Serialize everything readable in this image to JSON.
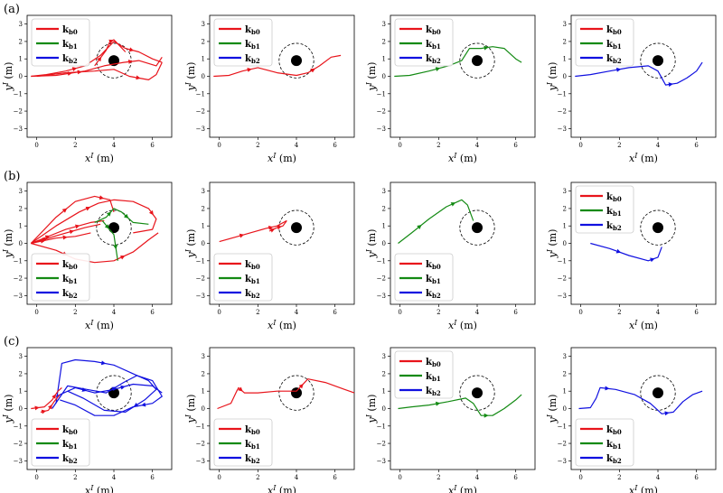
{
  "figure": {
    "row_labels": [
      "(a)",
      "(b)",
      "(c)"
    ]
  },
  "chart_data": [
    {
      "id": "a1",
      "row": 0,
      "col": 0,
      "type": "line",
      "xlabel": "x^I (m)",
      "ylabel": "y^I (m)",
      "xlim": [
        -0.5,
        7
      ],
      "ylim": [
        -3.5,
        3.5
      ],
      "xticks": [
        0,
        2,
        4,
        6
      ],
      "yticks": [
        -3,
        -2,
        -1,
        0,
        1,
        2,
        3
      ],
      "legend": {
        "placement": "upper-left",
        "entries": [
          "kb0",
          "kb1",
          "kb2"
        ]
      },
      "obstacle": {
        "center": [
          4,
          0.9
        ],
        "radius": 0.9
      },
      "series": [
        {
          "name": "kb0",
          "color": "#e8141b",
          "x": [
            -0.3,
            0.5,
            1.5,
            2.5,
            3.3,
            4.0,
            4.6,
            5.3,
            6.0,
            6.5
          ],
          "y": [
            0.0,
            0.1,
            0.3,
            0.6,
            1.2,
            2.0,
            1.6,
            1.4,
            1.0,
            0.8
          ]
        },
        {
          "name": "kb0",
          "color": "#e8141b",
          "x": [
            -0.3,
            1.0,
            2.5,
            3.5,
            4.5,
            5.3,
            6.2,
            6.5
          ],
          "y": [
            0.0,
            0.05,
            0.3,
            0.6,
            0.8,
            0.9,
            0.6,
            1.1
          ]
        },
        {
          "name": "kb0",
          "color": "#e8141b",
          "x": [
            0.0,
            1.5,
            3.0,
            4.0,
            4.8,
            5.8,
            6.2,
            6.5
          ],
          "y": [
            0.0,
            0.2,
            0.3,
            0.4,
            0.0,
            -0.2,
            0.1,
            0.8
          ]
        },
        {
          "name": "kb0",
          "color": "#e8141b",
          "x": [
            3.0,
            3.6,
            3.8,
            4.0,
            4.6
          ],
          "y": [
            0.6,
            1.5,
            2.0,
            2.1,
            1.4
          ]
        }
      ]
    },
    {
      "id": "a2",
      "row": 0,
      "col": 1,
      "type": "line",
      "xlabel": "x^I (m)",
      "ylabel": "y^I (m)",
      "xlim": [
        -0.5,
        7
      ],
      "ylim": [
        -3.5,
        3.5
      ],
      "xticks": [
        0,
        2,
        4,
        6
      ],
      "yticks": [
        -3,
        -2,
        -1,
        0,
        1,
        2,
        3
      ],
      "legend": {
        "placement": "upper-left",
        "entries": [
          "kb0",
          "kb1",
          "kb2"
        ]
      },
      "obstacle": {
        "center": [
          4,
          0.9
        ],
        "radius": 0.9
      },
      "series": [
        {
          "name": "kb0",
          "color": "#e8141b",
          "x": [
            -0.3,
            0.5,
            1.2,
            2.0,
            3.0,
            4.0,
            4.6,
            5.2,
            5.8,
            6.3
          ],
          "y": [
            0.0,
            0.05,
            0.3,
            0.5,
            0.2,
            0.05,
            0.2,
            0.6,
            1.1,
            1.2
          ]
        }
      ]
    },
    {
      "id": "a3",
      "row": 0,
      "col": 2,
      "type": "line",
      "xlabel": "x^I (m)",
      "ylabel": "y^I (m)",
      "xlim": [
        -0.5,
        7
      ],
      "ylim": [
        -3.5,
        3.5
      ],
      "xticks": [
        0,
        2,
        4,
        6
      ],
      "yticks": [
        -3,
        -2,
        -1,
        0,
        1,
        2,
        3
      ],
      "legend": {
        "placement": "upper-left",
        "entries": [
          "kb0",
          "kb1",
          "kb2"
        ]
      },
      "obstacle": {
        "center": [
          4,
          0.9
        ],
        "radius": 0.9
      },
      "series": [
        {
          "name": "kb1",
          "color": "#138a13",
          "x": [
            -0.3,
            0.5,
            1.5,
            2.5,
            3.2,
            3.6,
            4.2,
            4.8,
            5.4,
            6.0,
            6.3
          ],
          "y": [
            0.0,
            0.05,
            0.3,
            0.6,
            0.9,
            1.6,
            1.6,
            1.7,
            1.6,
            1.0,
            0.8
          ]
        }
      ]
    },
    {
      "id": "a4",
      "row": 0,
      "col": 3,
      "type": "line",
      "xlabel": "x^I (m)",
      "ylabel": "y^I (m)",
      "xlim": [
        -0.5,
        7
      ],
      "ylim": [
        -3.5,
        3.5
      ],
      "xticks": [
        0,
        2,
        4,
        6
      ],
      "yticks": [
        -3,
        -2,
        -1,
        0,
        1,
        2,
        3
      ],
      "legend": {
        "placement": "upper-left",
        "entries": [
          "kb0",
          "kb1",
          "kb2"
        ]
      },
      "obstacle": {
        "center": [
          4,
          0.9
        ],
        "radius": 0.9
      },
      "series": [
        {
          "name": "kb2",
          "color": "#1010e0",
          "x": [
            -0.3,
            0.5,
            1.5,
            2.5,
            3.5,
            4.0,
            4.4,
            5.0,
            5.5,
            6.0,
            6.3
          ],
          "y": [
            0.0,
            0.1,
            0.3,
            0.5,
            0.6,
            0.3,
            -0.5,
            -0.4,
            -0.1,
            0.3,
            0.8
          ]
        }
      ]
    },
    {
      "id": "b1",
      "row": 1,
      "col": 0,
      "type": "line",
      "xlabel": "x^I (m)",
      "ylabel": "y^I (m)",
      "xlim": [
        -0.5,
        7
      ],
      "ylim": [
        -3.5,
        3.5
      ],
      "xticks": [
        0,
        2,
        4,
        6
      ],
      "yticks": [
        -3,
        -2,
        -1,
        0,
        1,
        2,
        3
      ],
      "legend": {
        "placement": "lower-left",
        "entries": [
          "kb0",
          "kb1",
          "kb2"
        ]
      },
      "obstacle": {
        "center": [
          4,
          0.9
        ],
        "radius": 0.9
      },
      "series": [
        {
          "name": "kb0",
          "color": "#e8141b",
          "x": [
            -0.3,
            1.0,
            2.0,
            3.0,
            3.8,
            4.0
          ],
          "y": [
            0.0,
            1.5,
            2.4,
            2.7,
            2.5,
            1.8
          ]
        },
        {
          "name": "kb0",
          "color": "#e8141b",
          "x": [
            -0.3,
            1.0,
            2.2,
            3.2,
            4.0,
            5.0,
            5.8,
            6.2,
            6.0,
            5.0
          ],
          "y": [
            0.0,
            1.0,
            1.8,
            2.3,
            2.5,
            2.4,
            2.0,
            1.4,
            0.8,
            0.6
          ]
        },
        {
          "name": "kb0",
          "color": "#e8141b",
          "x": [
            -0.3,
            1.5,
            2.8,
            3.5
          ],
          "y": [
            0.0,
            0.8,
            1.2,
            1.3
          ]
        },
        {
          "name": "kb0",
          "color": "#e8141b",
          "x": [
            -0.3,
            1.2,
            2.5,
            3.3
          ],
          "y": [
            0.0,
            0.5,
            0.9,
            1.1
          ]
        },
        {
          "name": "kb0",
          "color": "#e8141b",
          "x": [
            -0.3,
            1.0,
            2.0,
            2.8
          ],
          "y": [
            0.0,
            0.3,
            0.4,
            0.6
          ]
        },
        {
          "name": "kb0",
          "color": "#e8141b",
          "x": [
            -0.3,
            1.0,
            2.0,
            3.0,
            4.0,
            5.0,
            5.8,
            6.3
          ],
          "y": [
            0.0,
            -0.4,
            -0.9,
            -1.1,
            -1.0,
            -0.5,
            0.2,
            0.6
          ]
        },
        {
          "name": "kb1",
          "color": "#138a13",
          "x": [
            3.0,
            3.6,
            4.0,
            4.4,
            5.0,
            5.8
          ],
          "y": [
            1.2,
            1.5,
            2.0,
            1.8,
            1.2,
            1.1
          ]
        },
        {
          "name": "kb1",
          "color": "#138a13",
          "x": [
            3.4,
            4.0,
            4.2
          ],
          "y": [
            1.3,
            0.5,
            -1.0
          ]
        }
      ]
    },
    {
      "id": "b2",
      "row": 1,
      "col": 1,
      "type": "line",
      "xlabel": "x^I (m)",
      "ylabel": "y^I (m)",
      "xlim": [
        -0.5,
        7
      ],
      "ylim": [
        -3.5,
        3.5
      ],
      "xticks": [
        0,
        2,
        4,
        6
      ],
      "yticks": [
        -3,
        -2,
        -1,
        0,
        1,
        2,
        3
      ],
      "legend": {
        "placement": "lower-left",
        "entries": [
          "kb0",
          "kb1",
          "kb2"
        ]
      },
      "obstacle": {
        "center": [
          4,
          0.9
        ],
        "radius": 0.9
      },
      "series": [
        {
          "name": "kb0",
          "color": "#e8141b",
          "x": [
            0.0,
            0.8,
            1.6,
            2.4,
            3.0,
            3.5
          ],
          "y": [
            0.1,
            0.35,
            0.6,
            0.85,
            1.0,
            1.3
          ]
        },
        {
          "name": "kb0",
          "color": "#e8141b",
          "x": [
            2.6,
            3.0,
            3.3,
            3.5
          ],
          "y": [
            0.7,
            0.9,
            1.0,
            1.3
          ]
        }
      ]
    },
    {
      "id": "b3",
      "row": 1,
      "col": 2,
      "type": "line",
      "xlabel": "x^I (m)",
      "ylabel": "y^I (m)",
      "xlim": [
        -0.5,
        7
      ],
      "ylim": [
        -3.5,
        3.5
      ],
      "xticks": [
        0,
        2,
        4,
        6
      ],
      "yticks": [
        -3,
        -2,
        -1,
        0,
        1,
        2,
        3
      ],
      "legend": {
        "placement": "lower-left",
        "entries": [
          "kb0",
          "kb1",
          "kb2"
        ]
      },
      "obstacle": {
        "center": [
          4,
          0.9
        ],
        "radius": 0.9
      },
      "series": [
        {
          "name": "kb1",
          "color": "#138a13",
          "x": [
            -0.1,
            0.6,
            1.5,
            2.4,
            3.2,
            3.5,
            3.8
          ],
          "y": [
            0.0,
            0.6,
            1.4,
            2.1,
            2.5,
            2.2,
            1.3
          ]
        }
      ]
    },
    {
      "id": "b4",
      "row": 1,
      "col": 3,
      "type": "line",
      "xlabel": "x^I (m)",
      "ylabel": "y^I (m)",
      "xlim": [
        -0.5,
        7
      ],
      "ylim": [
        -3.5,
        3.5
      ],
      "xticks": [
        0,
        2,
        4,
        6
      ],
      "yticks": [
        -3,
        -2,
        -1,
        0,
        1,
        2,
        3
      ],
      "legend": {
        "placement": "upper-left",
        "entries": [
          "kb0",
          "kb1",
          "kb2"
        ]
      },
      "obstacle": {
        "center": [
          4,
          0.9
        ],
        "radius": 0.9
      },
      "series": [
        {
          "name": "kb2",
          "color": "#1010e0",
          "x": [
            0.5,
            1.5,
            2.5,
            3.5,
            4.0,
            4.2
          ],
          "y": [
            0.0,
            -0.3,
            -0.7,
            -1.0,
            -0.8,
            -0.2
          ]
        }
      ]
    },
    {
      "id": "c1",
      "row": 2,
      "col": 0,
      "type": "line",
      "xlabel": "x^I (m)",
      "ylabel": "y^I (m)",
      "xlim": [
        -0.5,
        7
      ],
      "ylim": [
        -3.5,
        3.5
      ],
      "xticks": [
        0,
        2,
        4,
        6
      ],
      "yticks": [
        -3,
        -2,
        -1,
        0,
        1,
        2,
        3
      ],
      "legend": {
        "placement": "lower-left",
        "entries": [
          "kb0",
          "kb1",
          "kb2"
        ]
      },
      "obstacle": {
        "center": [
          4,
          0.9
        ],
        "radius": 0.9
      },
      "series": [
        {
          "name": "kb2",
          "color": "#1010e0",
          "x": [
            1.0,
            1.3,
            2.0,
            3.0,
            4.0,
            5.0,
            5.8,
            6.2,
            5.6,
            4.6,
            3.5,
            2.4,
            1.6
          ],
          "y": [
            0.3,
            2.6,
            2.8,
            2.7,
            2.5,
            2.0,
            1.6,
            1.1,
            0.5,
            -0.2,
            -0.1,
            0.6,
            1.0
          ]
        },
        {
          "name": "kb2",
          "color": "#1010e0",
          "x": [
            0.8,
            1.6,
            2.6,
            3.6,
            4.5,
            5.2,
            6.0,
            6.5,
            6.0,
            5.0,
            4.0,
            3.0,
            2.0,
            1.2
          ],
          "y": [
            0.0,
            1.3,
            1.1,
            0.9,
            1.5,
            1.9,
            1.6,
            0.7,
            0.3,
            0.1,
            -0.4,
            -0.4,
            0.2,
            0.5
          ]
        },
        {
          "name": "kb2",
          "color": "#1010e0",
          "x": [
            1.0,
            2.0,
            3.0,
            4.0,
            5.0,
            6.0,
            6.5
          ],
          "y": [
            0.7,
            1.2,
            0.9,
            1.1,
            1.4,
            1.3,
            0.9
          ]
        },
        {
          "name": "kb0",
          "color": "#e8141b",
          "x": [
            -0.3,
            0.4,
            0.8,
            1.1,
            1.3
          ],
          "y": [
            0.0,
            0.1,
            0.5,
            1.0,
            1.2
          ]
        },
        {
          "name": "kb0",
          "color": "#e8141b",
          "x": [
            0.2,
            0.6,
            0.9,
            1.2
          ],
          "y": [
            -0.2,
            -0.1,
            0.4,
            0.8
          ]
        }
      ]
    },
    {
      "id": "c2",
      "row": 2,
      "col": 1,
      "type": "line",
      "xlabel": "x^I (m)",
      "ylabel": "y^I (m)",
      "xlim": [
        -0.5,
        7
      ],
      "ylim": [
        -3.5,
        3.5
      ],
      "xticks": [
        0,
        2,
        4,
        6
      ],
      "yticks": [
        -3,
        -2,
        -1,
        0,
        1,
        2,
        3
      ],
      "legend": {
        "placement": "lower-left",
        "entries": [
          "kb0",
          "kb1",
          "kb2"
        ]
      },
      "obstacle": {
        "center": [
          4,
          0.9
        ],
        "radius": 0.9
      },
      "series": [
        {
          "name": "kb0",
          "color": "#e8141b",
          "x": [
            -0.1,
            0.6,
            0.9,
            1.0,
            1.3,
            2.0,
            3.0,
            4.0,
            4.6,
            5.5,
            6.5,
            7.0
          ],
          "y": [
            0.0,
            0.3,
            1.0,
            1.2,
            0.9,
            0.9,
            1.0,
            1.0,
            1.7,
            1.5,
            1.1,
            0.9
          ]
        }
      ]
    },
    {
      "id": "c3",
      "row": 2,
      "col": 2,
      "type": "line",
      "xlabel": "x^I (m)",
      "ylabel": "y^I (m)",
      "xlim": [
        -0.5,
        7
      ],
      "ylim": [
        -3.5,
        3.5
      ],
      "xticks": [
        0,
        2,
        4,
        6
      ],
      "yticks": [
        -3,
        -2,
        -1,
        0,
        1,
        2,
        3
      ],
      "legend": {
        "placement": "upper-left",
        "entries": [
          "kb0",
          "kb1",
          "kb2"
        ]
      },
      "obstacle": {
        "center": [
          4,
          0.9
        ],
        "radius": 0.9
      },
      "series": [
        {
          "name": "kb1",
          "color": "#138a13",
          "x": [
            -0.1,
            0.6,
            1.5,
            2.5,
            3.4,
            3.8,
            4.2,
            4.8,
            5.4,
            6.0,
            6.3
          ],
          "y": [
            0.0,
            0.1,
            0.2,
            0.4,
            0.6,
            0.3,
            -0.4,
            -0.4,
            0.0,
            0.5,
            0.8
          ]
        }
      ]
    },
    {
      "id": "c4",
      "row": 2,
      "col": 3,
      "type": "line",
      "xlabel": "x^I (m)",
      "ylabel": "y^I (m)",
      "xlim": [
        -0.5,
        7
      ],
      "ylim": [
        -3.5,
        3.5
      ],
      "xticks": [
        0,
        2,
        4,
        6
      ],
      "yticks": [
        -3,
        -2,
        -1,
        0,
        1,
        2,
        3
      ],
      "legend": {
        "placement": "lower-left",
        "entries": [
          "kb0",
          "kb1",
          "kb2"
        ]
      },
      "obstacle": {
        "center": [
          4,
          0.9
        ],
        "radius": 0.9
      },
      "series": [
        {
          "name": "kb2",
          "color": "#1010e0",
          "x": [
            -0.1,
            0.5,
            0.8,
            1.0,
            1.8,
            2.8,
            3.6,
            4.2,
            4.8,
            5.3,
            5.8,
            6.3
          ],
          "y": [
            0.0,
            0.05,
            0.6,
            1.2,
            1.1,
            0.8,
            0.3,
            -0.3,
            -0.2,
            0.4,
            0.8,
            1.0
          ]
        }
      ]
    }
  ]
}
